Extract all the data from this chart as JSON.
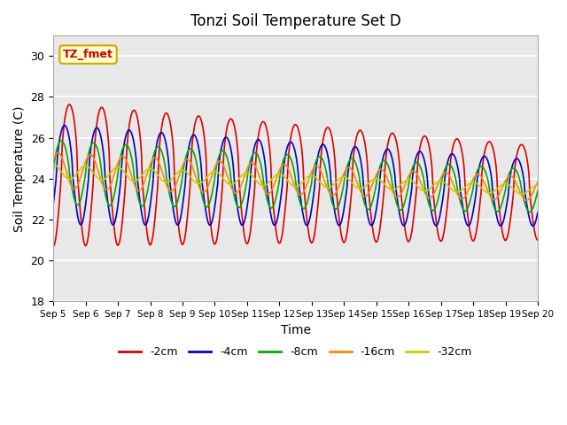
{
  "title": "Tonzi Soil Temperature Set D",
  "xlabel": "Time",
  "ylabel": "Soil Temperature (C)",
  "ylim": [
    18,
    31
  ],
  "yticks": [
    18,
    20,
    22,
    24,
    26,
    28,
    30
  ],
  "x_tick_labels": [
    "Sep 5",
    "Sep 6",
    "Sep 7",
    "Sep 8",
    "Sep 9",
    "Sep 10",
    "Sep 11",
    "Sep 12",
    "Sep 13",
    "Sep 14",
    "Sep 15",
    "Sep 16",
    "Sep 17",
    "Sep 18",
    "Sep 19",
    "Sep 20"
  ],
  "legend_labels": [
    "-2cm",
    "-4cm",
    "-8cm",
    "-16cm",
    "-32cm"
  ],
  "legend_colors": [
    "#dd0000",
    "#0000cc",
    "#00aa00",
    "#ff8800",
    "#cccc00"
  ],
  "annotation_text": "TZ_fmet",
  "annotation_bg": "#ffffcc",
  "annotation_border": "#ccaa00",
  "background_color": "#e8e8e8",
  "num_days": 15,
  "points_per_day": 48
}
